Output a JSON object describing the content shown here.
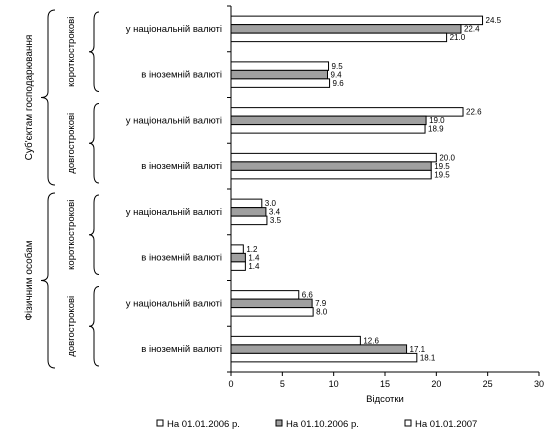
{
  "chart_data": {
    "type": "bar",
    "orientation": "horizontal",
    "xlabel": "Відсотки",
    "xlim": [
      0,
      30
    ],
    "xticks": [
      0,
      5,
      10,
      15,
      20,
      25,
      30
    ],
    "grid": false,
    "legend_position": "bottom",
    "groups": [
      {
        "label": "Суб'єктам господарювання",
        "subgroups": [
          {
            "label": "короткострокові",
            "categories": [
              "у національній валюті",
              "в іноземній валюті"
            ]
          },
          {
            "label": "довгострокові",
            "categories": [
              "у національній валюті",
              "в іноземній валюті"
            ]
          }
        ]
      },
      {
        "label": "Фізичним особам",
        "subgroups": [
          {
            "label": "короткострокові",
            "categories": [
              "у національній валюті",
              "в іноземній валюті"
            ]
          },
          {
            "label": "довгострокові",
            "categories": [
              "у національній валюті",
              "в іноземній валюті"
            ]
          }
        ]
      }
    ],
    "series": [
      {
        "name": "На 01.01.2006 р.",
        "color": "#ffffff",
        "values": [
          24.5,
          9.5,
          22.6,
          20.0,
          3.0,
          1.2,
          6.6,
          12.6
        ]
      },
      {
        "name": "На 01.10.2006 р.",
        "color": "#a0a0a0",
        "values": [
          22.4,
          9.4,
          19.0,
          19.5,
          3.4,
          1.4,
          7.9,
          17.1
        ]
      },
      {
        "name": "На 01.01.2007",
        "color": "#ffffff",
        "values": [
          21.0,
          9.6,
          18.9,
          19.5,
          3.5,
          1.4,
          8.0,
          18.1
        ]
      }
    ]
  }
}
